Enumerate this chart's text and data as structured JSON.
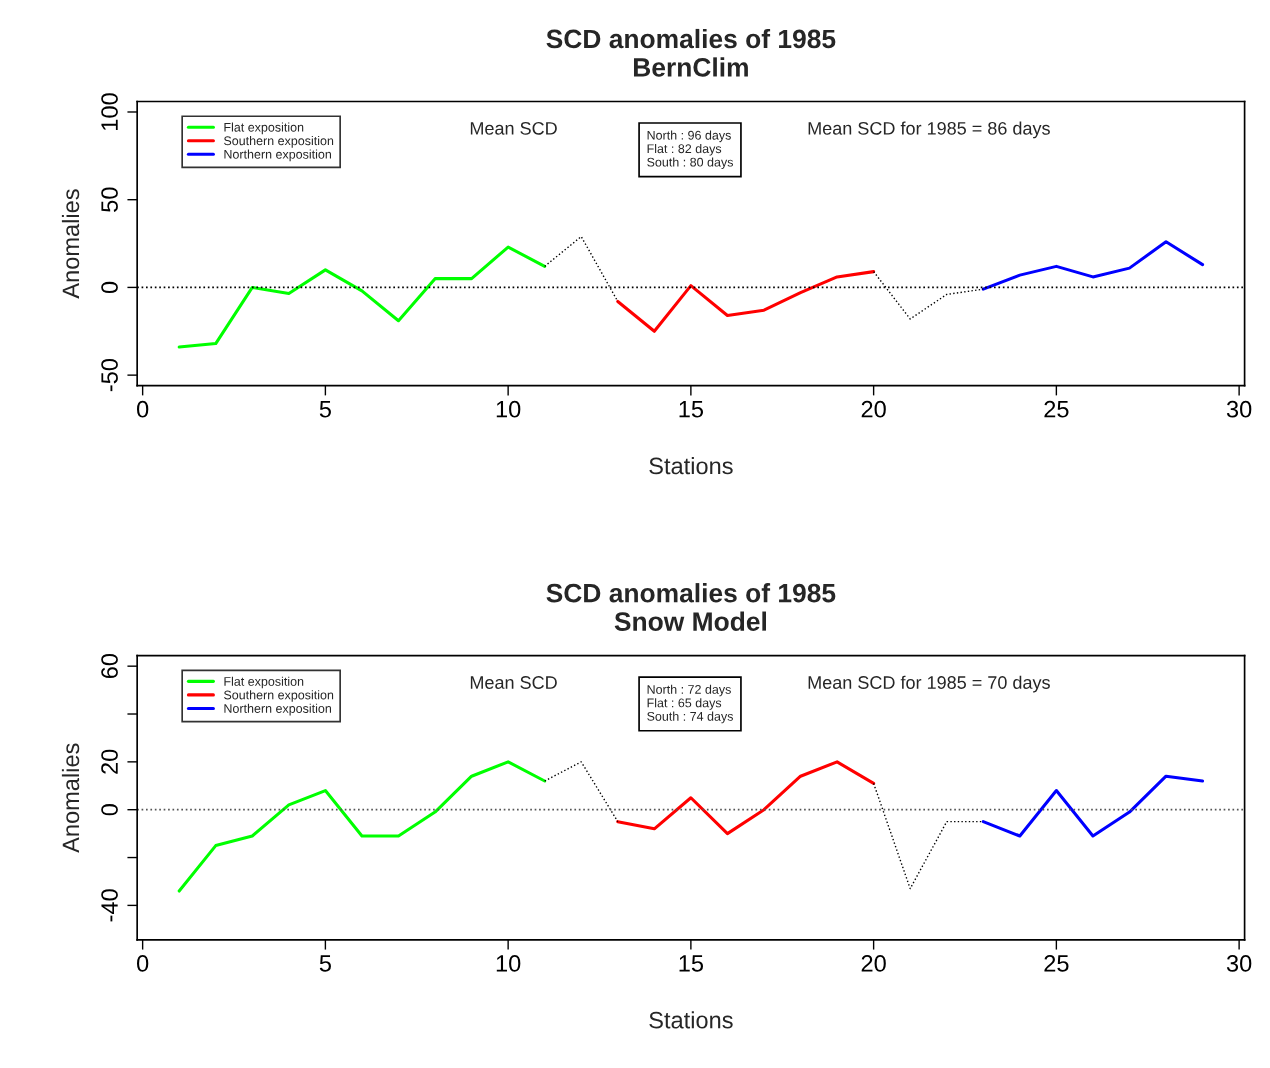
{
  "chart_data": [
    {
      "type": "line",
      "title": "SCD anomalies of 1985\nBernClim",
      "xlabel": "Stations",
      "ylabel": "Anomalies",
      "xlim": [
        -0.15,
        30.15
      ],
      "xticks": [
        0,
        5,
        10,
        15,
        20,
        25,
        30
      ],
      "ylim": [
        -56,
        106
      ],
      "yticks": [
        -50,
        0,
        50,
        100
      ],
      "grid": false,
      "legend": "top left",
      "line_style": "solid",
      "marker": "none",
      "series": [
        {
          "name": "Flat exposition",
          "color": "#00ff00",
          "x": [
            1,
            2,
            3,
            4,
            5,
            6,
            7,
            8,
            9,
            10,
            11
          ],
          "values": [
            -34,
            -32,
            0,
            -3.5,
            10,
            -2,
            -19,
            5,
            5,
            23,
            12
          ]
        },
        {
          "name": "Southern exposition",
          "color": "#ff0000",
          "x": [
            13,
            14,
            15,
            16,
            17,
            18,
            19,
            20
          ],
          "values": [
            -8,
            -25,
            1,
            -16,
            -13,
            -3,
            6,
            9
          ]
        },
        {
          "name": "Northern exposition",
          "color": "#0000ff",
          "x": [
            23,
            24,
            25,
            26,
            27,
            28,
            29
          ],
          "values": [
            -1,
            7,
            12,
            6,
            11,
            26,
            13
          ]
        },
        {
          "color": "#000000",
          "line_style": "dotted",
          "x": [
            11,
            12,
            13,
            null,
            20,
            21,
            22,
            23
          ],
          "values": [
            12,
            29,
            -8,
            null,
            9,
            -18,
            -4,
            -1
          ]
        }
      ],
      "ref_lines": [
        {
          "axis": "y",
          "value": 0,
          "color": "#000000",
          "line_style": "dotted"
        }
      ],
      "annotations": [
        "Mean SCD",
        "North : 96 days\nFlat : 82 days\nSouth : 80 days",
        "Mean SCD for 1985 = 86 days"
      ]
    },
    {
      "type": "line",
      "title": "SCD anomalies of 1985\nSnow Model",
      "xlabel": "Stations",
      "ylabel": "Anomalies",
      "xlim": [
        -0.15,
        30.15
      ],
      "xticks": [
        0,
        5,
        10,
        15,
        20,
        25,
        30
      ],
      "ylim": [
        -54.4,
        64.4
      ],
      "yticks": [
        -40,
        {
          "value": -20,
          "label": null
        },
        0,
        20,
        {
          "value": 40,
          "label": null
        },
        60
      ],
      "grid": false,
      "legend": "top left",
      "line_style": "solid",
      "marker": "none",
      "series": [
        {
          "name": "Flat exposition",
          "color": "#00ff00",
          "x": [
            1,
            2,
            3,
            4,
            5,
            6,
            7,
            8,
            9,
            10,
            11
          ],
          "values": [
            -34,
            -15,
            -11,
            2,
            8,
            -11,
            -11,
            -1,
            14,
            20,
            12
          ]
        },
        {
          "name": "Southern exposition",
          "color": "#ff0000",
          "x": [
            13,
            14,
            15,
            16,
            17,
            18,
            19,
            20
          ],
          "values": [
            -5,
            -8,
            5,
            -10,
            0,
            14,
            20,
            11
          ]
        },
        {
          "name": "Northern exposition",
          "color": "#0000ff",
          "x": [
            23,
            24,
            25,
            26,
            27,
            28,
            29
          ],
          "values": [
            -5,
            -11,
            8,
            -11,
            -1,
            14,
            12
          ]
        },
        {
          "color": "#000000",
          "line_style": "dotted",
          "x": [
            11,
            12,
            13,
            null,
            20,
            21,
            22,
            23
          ],
          "values": [
            12,
            20,
            -5,
            null,
            11,
            -33,
            -5,
            -5
          ]
        }
      ],
      "ref_lines": [
        {
          "axis": "y",
          "value": 0,
          "color": "#555555",
          "line_style": "dotted"
        }
      ],
      "annotations": [
        "Mean SCD",
        "North : 72 days\nFlat : 65 days\nSouth : 74 days",
        "Mean SCD for 1985 = 70 days"
      ]
    }
  ]
}
